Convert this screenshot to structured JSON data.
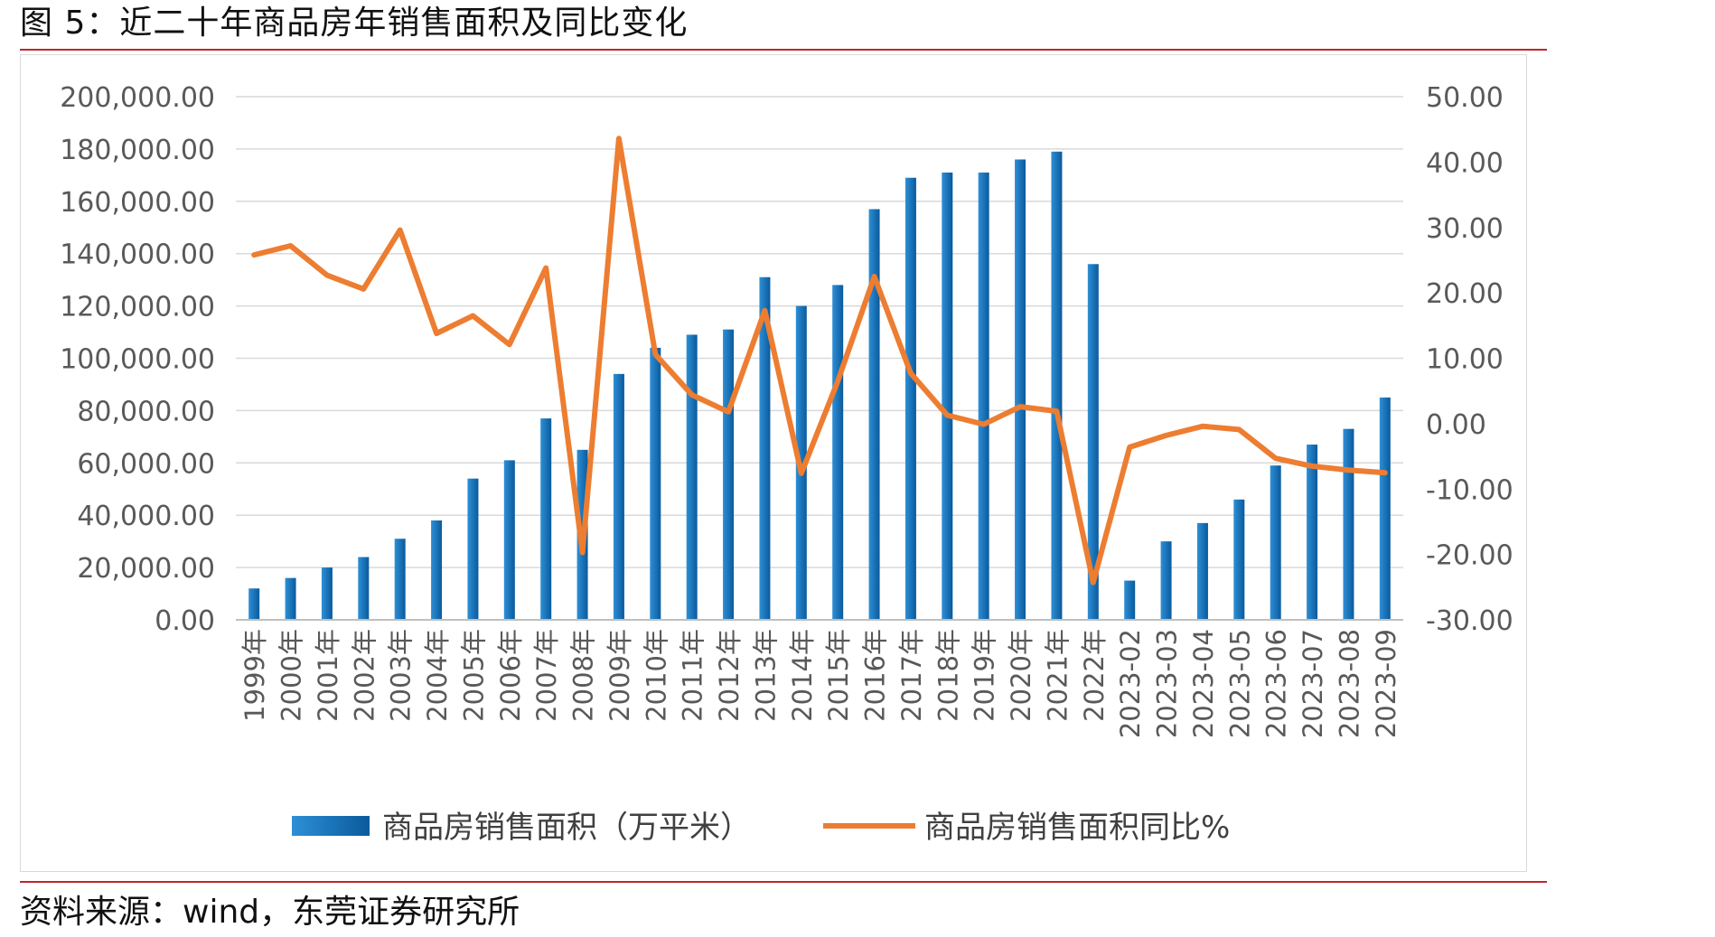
{
  "figure": {
    "title": "图 5：近二十年商品房年销售面积及同比变化",
    "source": "资料来源：wind，东莞证券研究所"
  },
  "colors": {
    "bar_dark": "#0a5a9c",
    "bar_light": "#2e8fd6",
    "line": "#ed7d31",
    "grid": "#d9d9d9",
    "axis_text": "#595959",
    "rule": "#c0262c"
  },
  "chart_data": {
    "type": "bar",
    "categories": [
      "1999年",
      "2000年",
      "2001年",
      "2002年",
      "2003年",
      "2004年",
      "2005年",
      "2006年",
      "2007年",
      "2008年",
      "2009年",
      "2010年",
      "2011年",
      "2012年",
      "2013年",
      "2014年",
      "2015年",
      "2016年",
      "2017年",
      "2018年",
      "2019年",
      "2020年",
      "2021年",
      "2022年",
      "2023-02",
      "2023-03",
      "2023-04",
      "2023-05",
      "2023-06",
      "2023-07",
      "2023-08",
      "2023-09"
    ],
    "series": [
      {
        "name": "商品房销售面积（万平米）",
        "type": "bar",
        "axis": "left",
        "values": [
          12000,
          16000,
          20000,
          24000,
          31000,
          38000,
          54000,
          61000,
          77000,
          65000,
          94000,
          104000,
          109000,
          111000,
          131000,
          120000,
          128000,
          157000,
          169000,
          171000,
          171000,
          176000,
          179000,
          136000,
          15000,
          30000,
          37000,
          46000,
          59000,
          67000,
          73000,
          85000
        ]
      },
      {
        "name": "商品房销售面积同比%",
        "type": "line",
        "axis": "right",
        "values": [
          25.8,
          27.2,
          22.7,
          20.6,
          29.6,
          13.8,
          16.5,
          12.1,
          23.8,
          -19.7,
          43.6,
          10.6,
          4.4,
          1.8,
          17.3,
          -7.6,
          6.5,
          22.5,
          7.7,
          1.3,
          -0.1,
          2.6,
          1.9,
          -24.3,
          -3.6,
          -1.8,
          -0.4,
          -0.9,
          -5.3,
          -6.5,
          -7.1,
          -7.5
        ]
      }
    ],
    "y_left": {
      "ylim": [
        0,
        200000
      ],
      "ticks": [
        "0.00",
        "20,000.00",
        "40,000.00",
        "60,000.00",
        "80,000.00",
        "100,000.00",
        "120,000.00",
        "140,000.00",
        "160,000.00",
        "180,000.00",
        "200,000.00"
      ]
    },
    "y_right": {
      "ylim": [
        -30,
        50
      ],
      "ticks": [
        "-30.00",
        "-20.00",
        "-10.00",
        "0.00",
        "10.00",
        "20.00",
        "30.00",
        "40.00",
        "50.00"
      ]
    },
    "grid": true,
    "legend_position": "bottom"
  }
}
